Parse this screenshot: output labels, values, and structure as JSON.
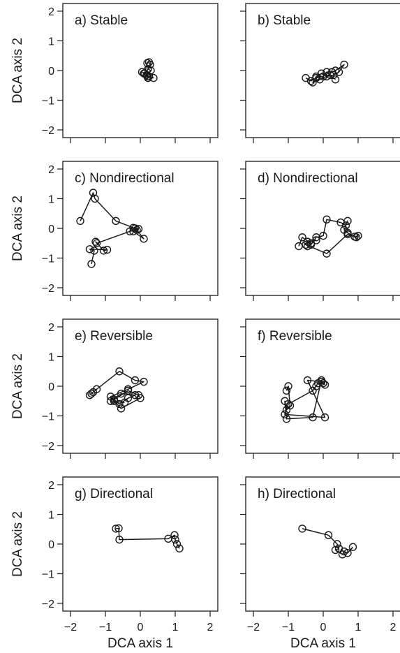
{
  "shared_axes": {
    "xlabel": "DCA axis 1",
    "ylabel": "DCA axis 2",
    "xlim": [
      -2,
      2
    ],
    "ylim": [
      -2,
      2
    ],
    "xticks": [
      -2,
      -1,
      0,
      1,
      2
    ],
    "yticks": [
      -2,
      -1,
      0,
      1,
      2
    ],
    "grid": false
  },
  "chart_data": [
    {
      "type": "line",
      "title": "a) Stable",
      "x": [
        0.05,
        0.12,
        0.2,
        0.25,
        0.28,
        0.22,
        0.3,
        0.18,
        0.25,
        0.38,
        0.2,
        0.1,
        0.22
      ],
      "y": [
        -0.05,
        -0.1,
        0.25,
        0.28,
        0.2,
        0.05,
        0.0,
        -0.15,
        -0.2,
        -0.25,
        -0.2,
        -0.1,
        -0.25
      ]
    },
    {
      "type": "line",
      "title": "b) Stable",
      "x": [
        -0.5,
        -0.35,
        -0.2,
        0.0,
        0.1,
        0.25,
        0.35,
        0.6,
        0.45,
        0.3,
        0.1,
        -0.05,
        -0.2,
        -0.3,
        -0.1,
        0.2,
        0.35
      ],
      "y": [
        -0.25,
        -0.35,
        -0.25,
        -0.2,
        -0.05,
        -0.05,
        0.0,
        0.2,
        -0.05,
        -0.15,
        -0.2,
        -0.1,
        -0.2,
        -0.4,
        -0.3,
        -0.15,
        -0.3
      ]
    },
    {
      "type": "line",
      "title": "c) Nondirectional",
      "x": [
        -1.72,
        -1.35,
        -1.3,
        -0.7,
        -0.2,
        -0.1,
        0.1,
        -0.2,
        -0.15,
        -0.05,
        -0.3,
        -1.25,
        -1.28,
        -1.05,
        -0.95,
        -1.45,
        -1.32,
        -1.4
      ],
      "y": [
        0.25,
        1.2,
        1.0,
        0.25,
        0.02,
        -0.05,
        -0.35,
        -0.1,
        0.0,
        -0.02,
        -0.1,
        -0.5,
        -0.45,
        -0.75,
        -0.72,
        -0.7,
        -0.75,
        -1.2
      ]
    },
    {
      "type": "line",
      "title": "d) Nondirectional",
      "x": [
        -0.7,
        -0.6,
        -0.35,
        -0.45,
        -0.35,
        -0.2,
        0.0,
        0.1,
        0.5,
        0.65,
        0.7,
        0.6,
        0.7,
        0.9,
        1.0,
        0.95,
        0.7,
        0.1,
        -0.5,
        -0.45,
        -0.2
      ],
      "y": [
        -0.6,
        -0.3,
        -0.5,
        -0.6,
        -0.55,
        -0.3,
        -0.25,
        0.3,
        0.2,
        0.1,
        0.25,
        -0.05,
        -0.15,
        -0.28,
        -0.25,
        -0.3,
        -0.2,
        -0.85,
        -0.55,
        -0.45,
        -0.4
      ]
    },
    {
      "type": "line",
      "title": "e) Reversible",
      "x": [
        -1.45,
        -1.4,
        -1.35,
        -1.25,
        -0.6,
        -0.15,
        0.1,
        -0.35,
        -0.85,
        -0.75,
        -0.55,
        0.0,
        -0.05,
        -0.35,
        -0.75,
        -0.6,
        -0.35,
        -0.15,
        -0.55,
        -0.85,
        -0.45
      ],
      "y": [
        -0.3,
        -0.25,
        -0.2,
        -0.1,
        0.5,
        0.2,
        0.15,
        -0.1,
        -0.35,
        -0.5,
        -0.75,
        -0.4,
        -0.3,
        -0.15,
        -0.45,
        -0.6,
        -0.4,
        -0.3,
        -0.25,
        -0.5,
        -0.55
      ]
    },
    {
      "type": "line",
      "title": "f) Reversible",
      "x": [
        -1.05,
        -1.0,
        -0.95,
        -1.05,
        -1.1,
        -1.05,
        -0.3,
        -0.05,
        0.0,
        0.05,
        -0.05,
        -0.45,
        0.05,
        -1.1,
        -1.0,
        -0.3,
        -0.15,
        -0.2
      ],
      "y": [
        -0.15,
        0.0,
        -0.65,
        -0.8,
        -0.5,
        -1.1,
        -1.05,
        0.2,
        0.1,
        0.05,
        0.15,
        0.2,
        -1.05,
        -0.95,
        -0.6,
        -0.15,
        0.1,
        0.0
      ]
    },
    {
      "type": "line",
      "title": "g) Directional",
      "x": [
        -0.7,
        -0.62,
        -0.6,
        0.8,
        0.98,
        1.0,
        1.05,
        1.12
      ],
      "y": [
        0.52,
        0.53,
        0.15,
        0.18,
        0.3,
        0.15,
        0.0,
        -0.15
      ]
    },
    {
      "type": "line",
      "title": "h) Directional",
      "x": [
        -0.6,
        0.15,
        0.4,
        0.45,
        0.35,
        0.55,
        0.6,
        0.7,
        0.85
      ],
      "y": [
        0.52,
        0.3,
        0.0,
        -0.15,
        -0.2,
        -0.35,
        -0.25,
        -0.3,
        -0.1
      ]
    }
  ]
}
